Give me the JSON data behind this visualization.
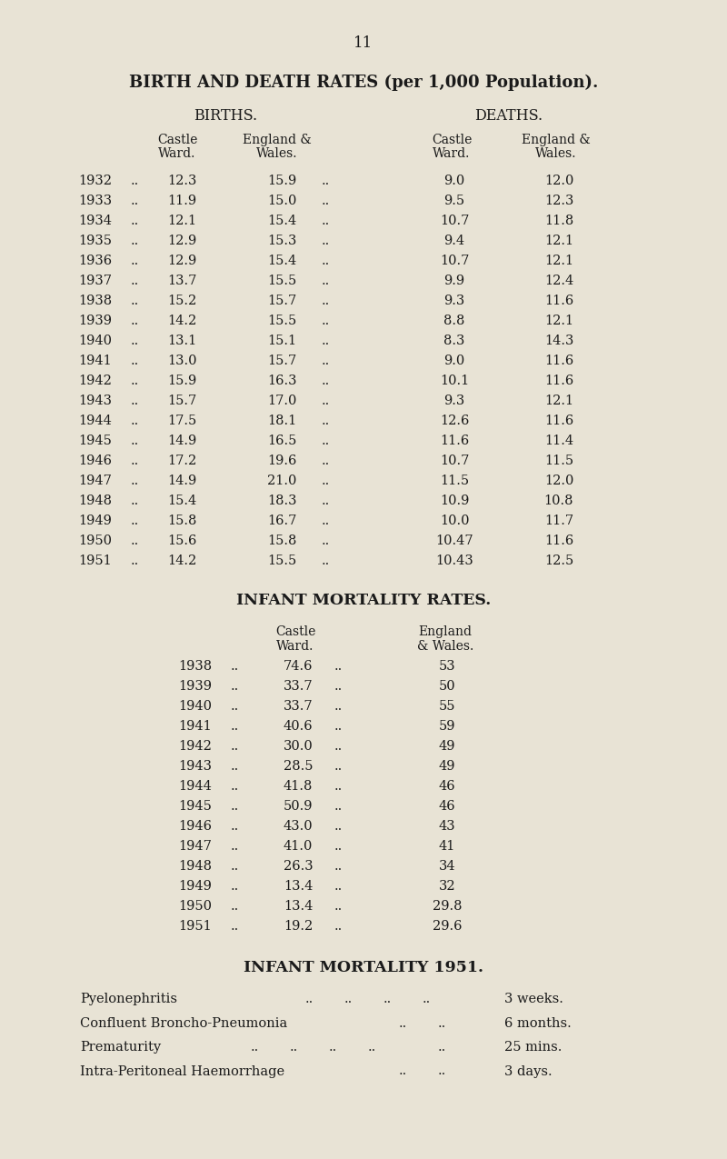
{
  "page_number": "11",
  "bg_color": "#e8e3d5",
  "title": "BIRTH AND DEATH RATES (per 1,000 Population).",
  "birth_death_rows": [
    [
      "1932",
      "12.3",
      "15.9",
      "9.0",
      "12.0"
    ],
    [
      "1933",
      "11.9",
      "15.0",
      "9.5",
      "12.3"
    ],
    [
      "1934",
      "12.1",
      "15.4",
      "10.7",
      "11.8"
    ],
    [
      "1935",
      "12.9",
      "15.3",
      "9.4",
      "12.1"
    ],
    [
      "1936",
      "12.9",
      "15.4",
      "10.7",
      "12.1"
    ],
    [
      "1937",
      "13.7",
      "15.5",
      "9.9",
      "12.4"
    ],
    [
      "1938",
      "15.2",
      "15.7",
      "9.3",
      "11.6"
    ],
    [
      "1939",
      "14.2",
      "15.5",
      "8.8",
      "12.1"
    ],
    [
      "1940",
      "13.1",
      "15.1",
      "8.3",
      "14.3"
    ],
    [
      "1941",
      "13.0",
      "15.7",
      "9.0",
      "11.6"
    ],
    [
      "1942",
      "15.9",
      "16.3",
      "10.1",
      "11.6"
    ],
    [
      "1943",
      "15.7",
      "17.0",
      "9.3",
      "12.1"
    ],
    [
      "1944",
      "17.5",
      "18.1",
      "12.6",
      "11.6"
    ],
    [
      "1945",
      "14.9",
      "16.5",
      "11.6",
      "11.4"
    ],
    [
      "1946",
      "17.2",
      "19.6",
      "10.7",
      "11.5"
    ],
    [
      "1947",
      "14.9",
      "21.0",
      "11.5",
      "12.0"
    ],
    [
      "1948",
      "15.4",
      "18.3",
      "10.9",
      "10.8"
    ],
    [
      "1949",
      "15.8",
      "16.7",
      "10.0",
      "11.7"
    ],
    [
      "1950",
      "15.6",
      "15.8",
      "10.47",
      "11.6"
    ],
    [
      "1951",
      "14.2",
      "15.5",
      "10.43",
      "12.5"
    ]
  ],
  "infant_title": "INFANT MORTALITY RATES.",
  "infant_rows": [
    [
      "1938",
      "74.6",
      "53"
    ],
    [
      "1939",
      "33.7",
      "50"
    ],
    [
      "1940",
      "33.7",
      "55"
    ],
    [
      "1941",
      "40.6",
      "59"
    ],
    [
      "1942",
      "30.0",
      "49"
    ],
    [
      "1943",
      "28.5",
      "49"
    ],
    [
      "1944",
      "41.8",
      "46"
    ],
    [
      "1945",
      "50.9",
      "46"
    ],
    [
      "1946",
      "43.0",
      "43"
    ],
    [
      "1947",
      "41.0",
      "41"
    ],
    [
      "1948",
      "26.3",
      "34"
    ],
    [
      "1949",
      "13.4",
      "32"
    ],
    [
      "1950",
      "13.4",
      "29.8"
    ],
    [
      "1951",
      "19.2",
      "29.6"
    ]
  ],
  "mortality_1951_title": "INFANT MORTALITY 1951.",
  "mortality_1951_rows": [
    [
      "Pyelonephritis",
      "3 weeks."
    ],
    [
      "Confluent Broncho-Pneumonia",
      "6 months."
    ],
    [
      "Prematurity",
      "25 mins."
    ],
    [
      "Intra-Peritoneal Haemorrhage",
      "3 days."
    ]
  ]
}
